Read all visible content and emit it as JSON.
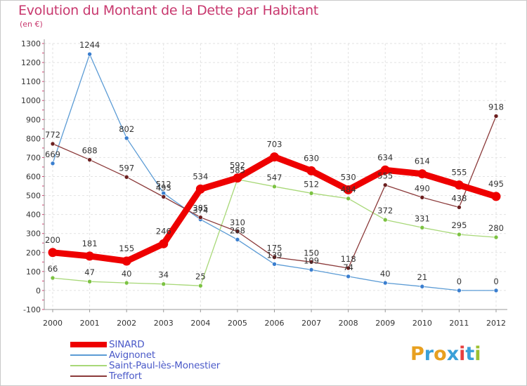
{
  "title": "Evolution du Montant de la Dette par Habitant",
  "subtitle": "(en €)",
  "brand": {
    "letters": [
      "P",
      "r",
      "o",
      "x",
      "i",
      "t",
      "i"
    ],
    "colors": [
      "#e8a020",
      "#3aa0d8",
      "#e8a020",
      "#3aa0d8",
      "#e84040",
      "#3aa0d8",
      "#9cc030"
    ]
  },
  "chart_data": {
    "type": "line",
    "title": "Evolution du Montant de la Dette par Habitant",
    "subtitle": "(en €)",
    "xlabel": "",
    "ylabel": "",
    "ylim": [
      -100,
      1300
    ],
    "yticks": [
      -100,
      0,
      100,
      200,
      300,
      400,
      500,
      600,
      700,
      800,
      900,
      1000,
      1100,
      1200,
      1300
    ],
    "x": [
      "2000",
      "2001",
      "2002",
      "2003",
      "2004",
      "2005",
      "2006",
      "2007",
      "2008",
      "2009",
      "2010",
      "2011",
      "2012"
    ],
    "grid": true,
    "legend_position": "bottom-left",
    "series": [
      {
        "name": "Avignonet",
        "color": "#5b9bd5",
        "marker": "#3a7ecf",
        "values": [
          669,
          1244,
          802,
          512,
          374,
          268,
          139,
          109,
          74,
          40,
          21,
          0,
          0
        ],
        "labels": [
          "669",
          "1244",
          "802",
          "512",
          "374",
          "268",
          "139",
          "109",
          "74",
          "40",
          "21",
          "0",
          "0"
        ],
        "label_shown": [
          true,
          true,
          true,
          true,
          true,
          true,
          true,
          true,
          true,
          true,
          true,
          true,
          true
        ]
      },
      {
        "name": "Saint-Paul-lès-Monestier",
        "color": "#a8d878",
        "marker": "#7cc242",
        "values": [
          66,
          47,
          40,
          34,
          25,
          585,
          547,
          512,
          484,
          372,
          331,
          295,
          280
        ],
        "labels": [
          "66",
          "47",
          "40",
          "34",
          "25",
          "585",
          "547",
          "512",
          "484",
          "372",
          "331",
          "295",
          "280"
        ],
        "label_shown": [
          true,
          true,
          true,
          true,
          true,
          true,
          true,
          true,
          true,
          true,
          true,
          true,
          true
        ]
      },
      {
        "name": "Treffort",
        "color": "#8b3a3a",
        "marker": "#6b1f1f",
        "values": [
          772,
          688,
          597,
          493,
          385,
          310,
          175,
          150,
          118,
          555,
          490,
          438,
          918
        ],
        "labels": [
          "772",
          "688",
          "597",
          "493",
          "385",
          "310",
          "175",
          "150",
          "118",
          "555",
          "490",
          "438",
          "918"
        ],
        "label_shown": [
          true,
          true,
          true,
          true,
          true,
          true,
          true,
          true,
          true,
          true,
          true,
          true,
          true
        ]
      },
      {
        "name": "SINARD",
        "color": "#ee0000",
        "marker": "#ee0000",
        "values": [
          200,
          181,
          155,
          246,
          534,
          592,
          703,
          630,
          530,
          634,
          614,
          555,
          495
        ],
        "labels": [
          "200",
          "181",
          "155",
          "246",
          "534",
          "592",
          "703",
          "630",
          "530",
          "634",
          "614",
          "555",
          "495"
        ],
        "label_shown": [
          true,
          true,
          true,
          true,
          true,
          true,
          true,
          true,
          true,
          true,
          true,
          true,
          true
        ]
      }
    ],
    "legend_order": [
      "SINARD",
      "Avignonet",
      "Saint-Paul-lès-Monestier",
      "Treffort"
    ]
  }
}
